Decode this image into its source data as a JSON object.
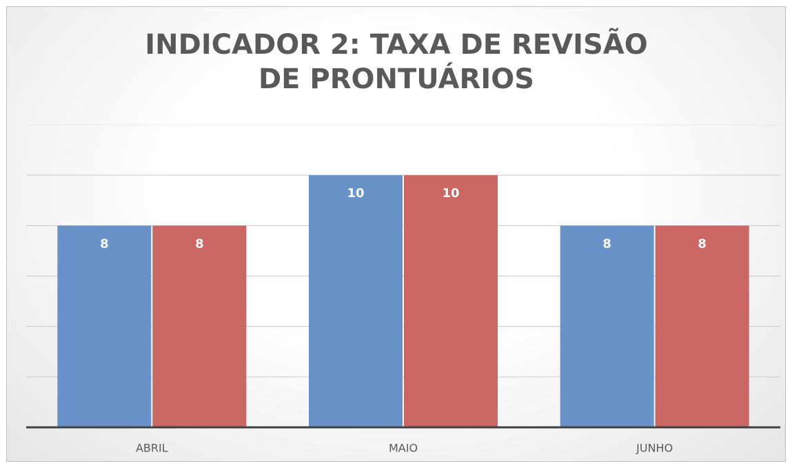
{
  "chart_data": {
    "type": "bar",
    "title": "INDICADOR 2: TAXA DE REVISÃO DE PRONTUÁRIOS",
    "categories": [
      "ABRIL",
      "MAIO",
      "JUNHO"
    ],
    "series": [
      {
        "color": "#6892c8",
        "values": [
          8,
          10,
          8
        ]
      },
      {
        "color": "#ca6664",
        "values": [
          8,
          10,
          8
        ]
      }
    ],
    "ylim": [
      0,
      12
    ],
    "yticks": [
      0,
      2,
      4,
      6,
      8,
      10,
      12
    ],
    "grid": true
  }
}
